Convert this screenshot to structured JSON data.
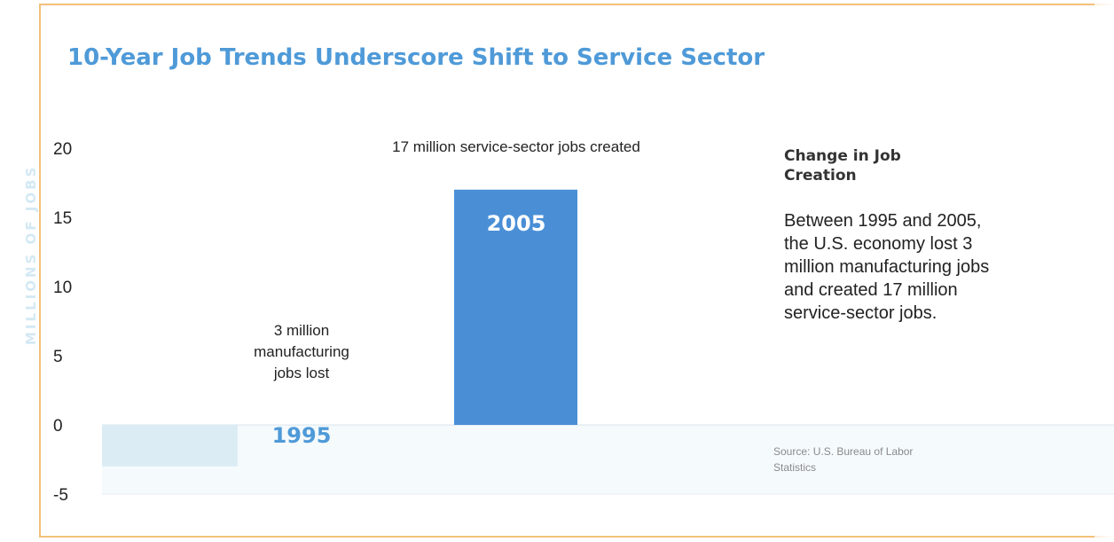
{
  "title": "10-Year Job Trends Underscore Shift to Service Sector",
  "side_title": "Change in Job Creation",
  "side_body": "Between 1995 and 2005, the U.S. economy lost 3 million manufacturing jobs and created 17 million service-sector jobs.",
  "source": "Source: U.S. Bureau of Labor Statistics",
  "colors": {
    "title": "#4f9ad8",
    "bar_2005": "#4a8fd6",
    "bar_1995": "#dcecf5",
    "frame": "#f3c07a",
    "axis_label": "#d3e9f4"
  },
  "chart_data": {
    "type": "bar",
    "categories": [
      "1995",
      "2005"
    ],
    "values": [
      -3,
      17
    ],
    "ylabel": "MILLIONS OF JOBS",
    "ylim": [
      -5,
      20
    ],
    "yticks": [
      20,
      15,
      10,
      5,
      0,
      -5
    ],
    "grid": false,
    "annotations": [
      {
        "category": "1995",
        "lines": [
          "3 million",
          "manufacturing",
          "jobs lost"
        ]
      },
      {
        "category": "2005",
        "lines": [
          "17 million service-sector jobs created"
        ]
      }
    ]
  }
}
